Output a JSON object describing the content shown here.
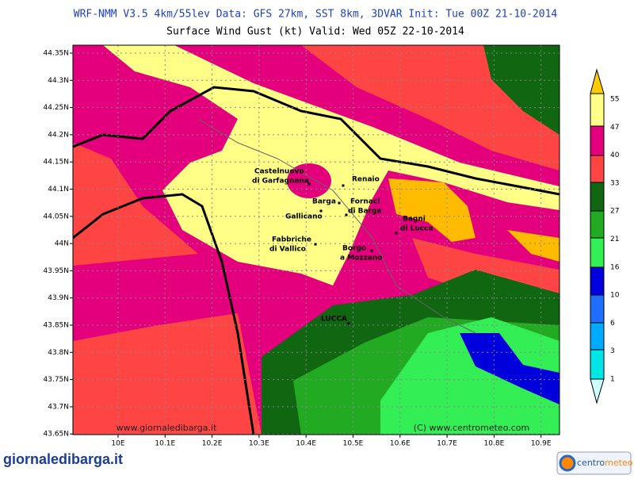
{
  "header": {
    "line1": "WRF-NMM V3.5 4km/55lev  Data: GFS 27km, SST 8km, 3DVAR  Init: Tue 00Z 21-10-2014",
    "line2": "Surface Wind Gust (kt)  Valid: Wed 05Z 22-10-2014"
  },
  "lat_ticks": [
    "44.35N",
    "44.3N",
    "44.25N",
    "44.2N",
    "44.15N",
    "44.1N",
    "44.05N",
    "44N",
    "43.95N",
    "43.9N",
    "43.85N",
    "43.8N",
    "43.75N",
    "43.7N",
    "43.65N"
  ],
  "lon_ticks": [
    "10E",
    "10.1E",
    "10.2E",
    "10.3E",
    "10.4E",
    "10.5E",
    "10.6E",
    "10.7E",
    "10.8E",
    "10.9E"
  ],
  "colorbar": [
    "1",
    "3",
    "6",
    "10",
    "16",
    "21",
    "27",
    "33",
    "40",
    "47",
    "55"
  ],
  "towns": [
    {
      "lines": [
        "Castelnuovo",
        "di Garfagnana"
      ]
    },
    {
      "lines": [
        "Renaio"
      ]
    },
    {
      "lines": [
        "Barga"
      ]
    },
    {
      "lines": [
        "Fornaci",
        "di Barga"
      ]
    },
    {
      "lines": [
        "Gallicano"
      ]
    },
    {
      "lines": [
        "Bagni",
        "di Lucca"
      ]
    },
    {
      "lines": [
        "Fabbriche",
        "di Vallico"
      ]
    },
    {
      "lines": [
        "Borgo",
        "a Mozzano"
      ]
    },
    {
      "lines": [
        "LUCCA"
      ]
    }
  ],
  "watermarks": {
    "left": "www.giornaledibarga.it",
    "right": "(C) www.centrometeo.com"
  },
  "logos": {
    "left": "giornaledibarga.it",
    "right_a": "centro",
    "right_b": "meteo"
  }
}
